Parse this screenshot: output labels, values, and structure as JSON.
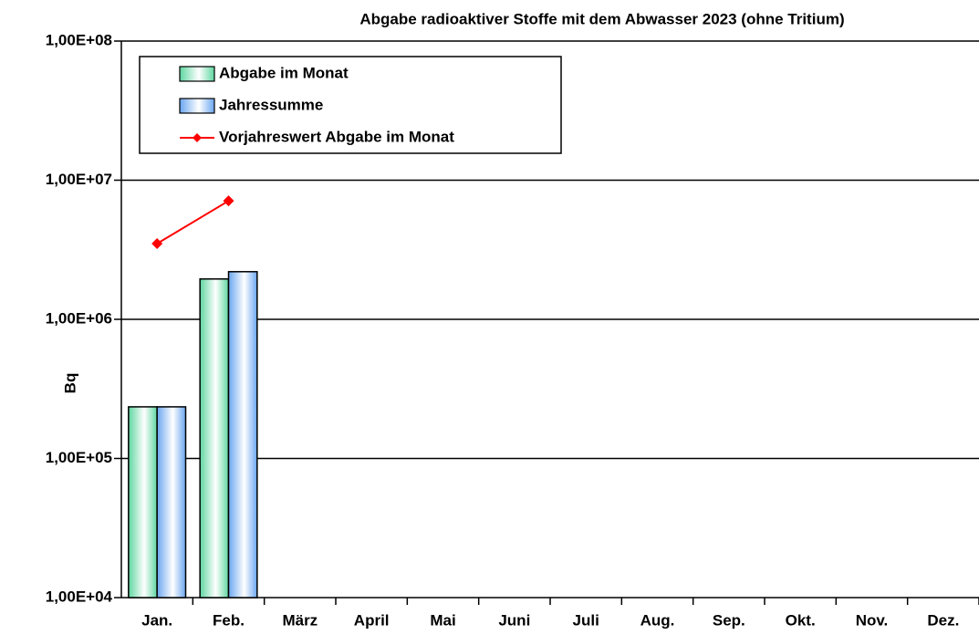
{
  "chart_data": {
    "type": "bar",
    "title": "Abgabe radioaktiver Stoffe mit dem Abwasser 2023 (ohne Tritium)",
    "y_label": "Bq",
    "categories": [
      "Jan.",
      "Feb.",
      "März",
      "April",
      "Mai",
      "Juni",
      "Juli",
      "Aug.",
      "Sep.",
      "Okt.",
      "Nov.",
      "Dez."
    ],
    "series": [
      {
        "name": "Abgabe im Monat",
        "type": "bar",
        "color": "#5ed6a0",
        "values": [
          235000,
          1950000,
          null,
          null,
          null,
          null,
          null,
          null,
          null,
          null,
          null,
          null
        ]
      },
      {
        "name": "Jahressumme",
        "type": "bar",
        "color": "#6aa6f0",
        "values": [
          235000,
          2200000,
          null,
          null,
          null,
          null,
          null,
          null,
          null,
          null,
          null,
          null
        ]
      },
      {
        "name": "Vorjahreswert Abgabe im Monat",
        "type": "line",
        "color": "#ff0000",
        "values": [
          3500000,
          7100000,
          null,
          null,
          null,
          null,
          null,
          null,
          null,
          null,
          null,
          null
        ]
      }
    ],
    "log_scale": true,
    "ylim": [
      10000,
      100000000
    ],
    "yticks": [
      {
        "value": 10000,
        "label": "1,00E+04"
      },
      {
        "value": 100000,
        "label": "1,00E+05"
      },
      {
        "value": 1000000,
        "label": "1,00E+06"
      },
      {
        "value": 10000000,
        "label": "1,00E+07"
      },
      {
        "value": 100000000,
        "label": "1,00E+08"
      }
    ],
    "grid": true,
    "legend": "upper left"
  }
}
